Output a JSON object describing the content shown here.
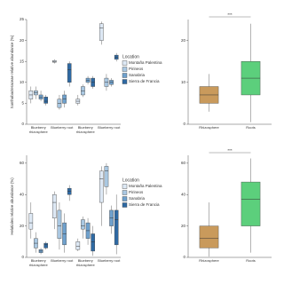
{
  "chart_data": [
    {
      "type": "box",
      "y_label": "Xanthobacteraceae relative abundance (%)",
      "legend_title": "Location",
      "categories": [
        "Blueberry rhizosphere",
        "Blueberry root",
        "Blueberry rhizosphere",
        "Blueberry root"
      ],
      "ylim": [
        0,
        25
      ],
      "yticks": [
        0,
        5,
        10,
        15,
        20,
        25
      ],
      "series": [
        {
          "name": "Montaña Palentina",
          "color": "#dde8f4",
          "values": [
            {
              "min": 5,
              "q1": 6,
              "median": 7,
              "q3": 8,
              "max": 9
            },
            {
              "min": 14.5,
              "q1": 14.8,
              "median": 15,
              "q3": 15.2,
              "max": 15.5
            },
            {
              "min": 4.5,
              "q1": 5,
              "median": 5.5,
              "q3": 6,
              "max": 7
            },
            {
              "min": 19,
              "q1": 20,
              "median": 23,
              "q3": 24,
              "max": 24.5
            }
          ]
        },
        {
          "name": "Pirineos",
          "color": "#aac8e2",
          "values": [
            {
              "min": 6,
              "q1": 7,
              "median": 7.5,
              "q3": 8,
              "max": 9
            },
            {
              "min": 3.5,
              "q1": 4,
              "median": 5,
              "q3": 6,
              "max": 7
            },
            {
              "min": 6.5,
              "q1": 7,
              "median": 8,
              "q3": 9,
              "max": 9.5
            },
            {
              "min": 8,
              "q1": 9,
              "median": 10,
              "q3": 11,
              "max": 12
            }
          ]
        },
        {
          "name": "Sanabria",
          "color": "#6fa1cd",
          "values": [
            {
              "min": 5.5,
              "q1": 6,
              "median": 6.5,
              "q3": 7,
              "max": 8
            },
            {
              "min": 4,
              "q1": 5,
              "median": 6,
              "q3": 7,
              "max": 8
            },
            {
              "min": 9.5,
              "q1": 10,
              "median": 10.5,
              "q3": 11,
              "max": 11.5
            },
            {
              "min": 9,
              "q1": 9.5,
              "median": 10,
              "q3": 10.5,
              "max": 11
            }
          ]
        },
        {
          "name": "Sierra de Francia",
          "color": "#2e69a3",
          "values": [
            {
              "min": 4.5,
              "q1": 5,
              "median": 5.5,
              "q3": 6.5,
              "max": 7
            },
            {
              "min": 9,
              "q1": 10,
              "median": 13,
              "q3": 14.5,
              "max": 15
            },
            {
              "min": 8.5,
              "q1": 9,
              "median": 10,
              "q3": 11,
              "max": 11.5
            },
            {
              "min": 15,
              "q1": 15.5,
              "median": 16,
              "q3": 16.5,
              "max": 17
            }
          ]
        }
      ]
    },
    {
      "type": "box",
      "categories": [
        "Rhizosphere",
        "Roots"
      ],
      "ylim": [
        0,
        25
      ],
      "yticks": [
        0,
        10,
        20
      ],
      "annotation": "***",
      "series": [
        {
          "colors": [
            "#c99a5c",
            "#5ccf7c"
          ],
          "values": [
            {
              "min": 3,
              "q1": 5,
              "median": 7,
              "q3": 9,
              "max": 12
            },
            {
              "min": 0.5,
              "q1": 7,
              "median": 11,
              "q3": 15,
              "max": 24
            }
          ]
        }
      ]
    },
    {
      "type": "box",
      "y_label": "Helotiales relative abundance (%)",
      "legend_title": "Location",
      "categories": [
        "Blueberry rhizosphere",
        "Blueberry root",
        "Blueberry rhizosphere",
        "Blueberry root"
      ],
      "ylim": [
        0,
        65
      ],
      "yticks": [
        0,
        20,
        40,
        60
      ],
      "series": [
        {
          "name": "Montaña Palentina",
          "color": "#dde8f4",
          "values": [
            {
              "min": 12,
              "q1": 18,
              "median": 22,
              "q3": 28,
              "max": 35
            },
            {
              "min": 18,
              "q1": 25,
              "median": 35,
              "q3": 40,
              "max": 42
            },
            {
              "min": 4,
              "q1": 5,
              "median": 7,
              "q3": 10,
              "max": 12
            },
            {
              "min": 20,
              "q1": 35,
              "median": 50,
              "q3": 55,
              "max": 58
            }
          ]
        },
        {
          "name": "Pirineos",
          "color": "#aac8e2",
          "values": [
            {
              "min": 3,
              "q1": 6,
              "median": 9,
              "q3": 12,
              "max": 16
            },
            {
              "min": 5,
              "q1": 12,
              "median": 20,
              "q3": 30,
              "max": 35
            },
            {
              "min": 12,
              "q1": 18,
              "median": 20,
              "q3": 24,
              "max": 26
            },
            {
              "min": 40,
              "q1": 45,
              "median": 55,
              "q3": 58,
              "max": 60
            }
          ]
        },
        {
          "name": "Sanabria",
          "color": "#6fa1cd",
          "values": [
            {
              "min": 2,
              "q1": 3,
              "median": 4,
              "q3": 5,
              "max": 6
            },
            {
              "min": 3,
              "q1": 8,
              "median": 15,
              "q3": 22,
              "max": 28
            },
            {
              "min": 8,
              "q1": 12,
              "median": 17,
              "q3": 22,
              "max": 25
            },
            {
              "min": 15,
              "q1": 20,
              "median": 25,
              "q3": 30,
              "max": 33
            }
          ]
        },
        {
          "name": "Sierra de Francia",
          "color": "#2e69a3",
          "values": [
            {
              "min": 5,
              "q1": 6,
              "median": 8,
              "q3": 9,
              "max": 10
            },
            {
              "min": 36,
              "q1": 40,
              "median": 42,
              "q3": 44,
              "max": 46
            },
            {
              "min": 1,
              "q1": 4,
              "median": 10,
              "q3": 15,
              "max": 20
            },
            {
              "min": 2,
              "q1": 8,
              "median": 24,
              "q3": 30,
              "max": 40
            }
          ]
        }
      ]
    },
    {
      "type": "box",
      "categories": [
        "Rhizosphere",
        "Roots"
      ],
      "ylim": [
        0,
        65
      ],
      "yticks": [
        0,
        20,
        40,
        60
      ],
      "annotation": "***",
      "series": [
        {
          "colors": [
            "#c99a5c",
            "#5ccf7c"
          ],
          "values": [
            {
              "min": 0.5,
              "q1": 6,
              "median": 12,
              "q3": 20,
              "max": 35
            },
            {
              "min": 3,
              "q1": 20,
              "median": 37,
              "q3": 48,
              "max": 63
            }
          ]
        }
      ]
    }
  ]
}
